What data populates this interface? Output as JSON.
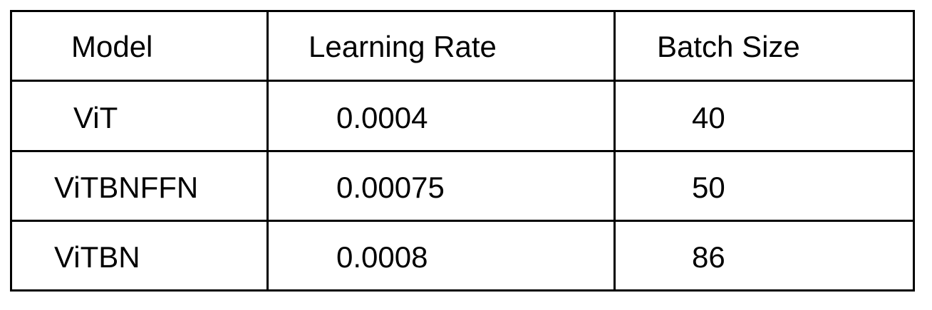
{
  "table": {
    "headers": [
      "Model",
      "Learning Rate",
      "Batch Size"
    ],
    "rows": [
      [
        "ViT",
        "0.0004",
        "40"
      ],
      [
        "ViTBNFFN",
        "0.00075",
        "50"
      ],
      [
        "ViTBN",
        "0.0008",
        "86"
      ]
    ]
  }
}
